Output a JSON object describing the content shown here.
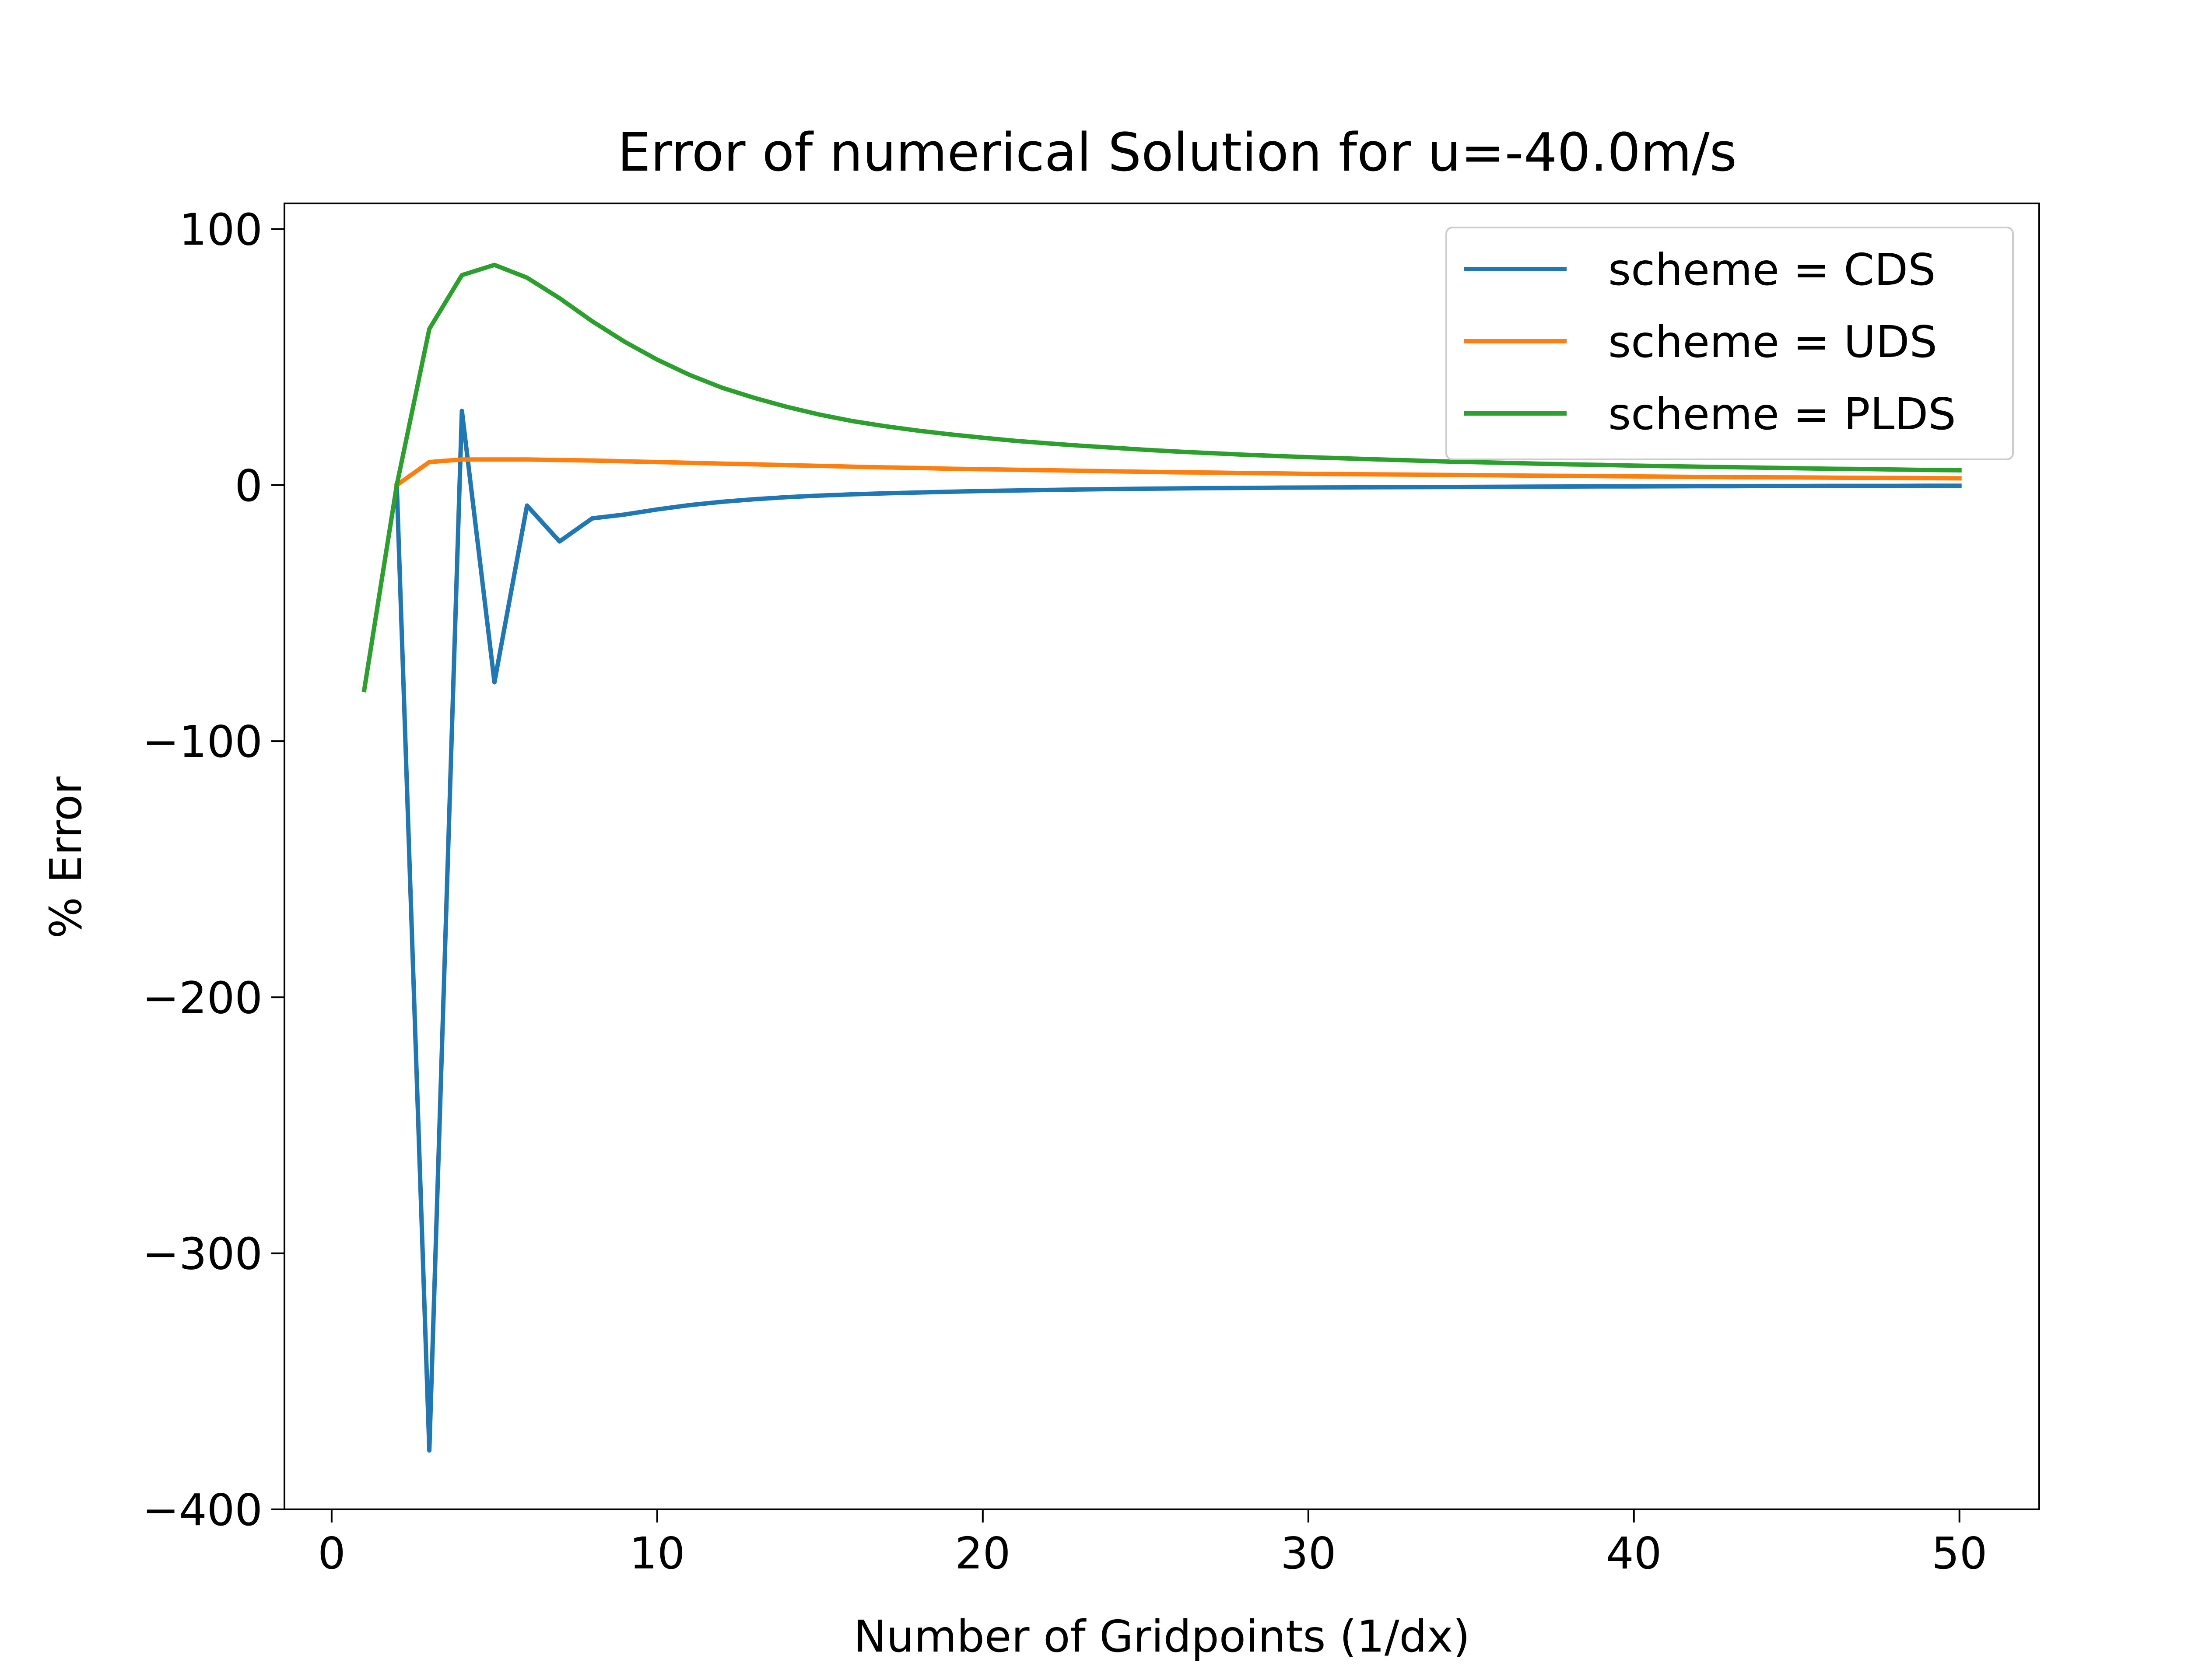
{
  "chart_data": {
    "type": "line",
    "title": "Error of numerical Solution for u=-40.0m/s",
    "xlabel": "Number of Gridpoints (1/dx)",
    "ylabel": "% Error",
    "xlim": [
      -1.45,
      52.45
    ],
    "ylim": [
      -400,
      110
    ],
    "xticks": [
      0,
      10,
      20,
      30,
      40,
      50
    ],
    "xtick_labels": [
      "0",
      "10",
      "20",
      "30",
      "40",
      "50"
    ],
    "yticks": [
      100,
      0,
      -100,
      -200,
      -300,
      -400
    ],
    "ytick_labels": [
      "100",
      "0",
      "−100",
      "−200",
      "−300",
      "−400"
    ],
    "grid": false,
    "legend_position": "top-right",
    "series": [
      {
        "name": "scheme = CDS",
        "color": "#1f77b4",
        "x": [
          2,
          3,
          4,
          5,
          6,
          7,
          8,
          9,
          10,
          11,
          12,
          13,
          14,
          15,
          16,
          17,
          18,
          19,
          20,
          21,
          22,
          23,
          24,
          25,
          26,
          27,
          28,
          29,
          30,
          31,
          32,
          33,
          34,
          35,
          36,
          37,
          38,
          39,
          40,
          41,
          42,
          43,
          44,
          45,
          46,
          47,
          48,
          49,
          50
        ],
        "y": [
          0,
          -377,
          29,
          -77,
          -8,
          -22,
          -13,
          -11.5,
          -9.5,
          -7.8,
          -6.5,
          -5.5,
          -4.7,
          -4.1,
          -3.6,
          -3.2,
          -2.9,
          -2.6,
          -2.3,
          -2.1,
          -1.9,
          -1.7,
          -1.55,
          -1.4,
          -1.3,
          -1.2,
          -1.1,
          -1.0,
          -0.95,
          -0.9,
          -0.85,
          -0.8,
          -0.75,
          -0.7,
          -0.65,
          -0.6,
          -0.55,
          -0.5,
          -0.5,
          -0.45,
          -0.4,
          -0.4,
          -0.35,
          -0.35,
          -0.3,
          -0.3,
          -0.3,
          -0.25,
          -0.25
        ]
      },
      {
        "name": "scheme = UDS",
        "color": "#ff7f0e",
        "x": [
          2,
          3,
          4,
          5,
          6,
          7,
          8,
          9,
          10,
          11,
          12,
          13,
          14,
          15,
          16,
          17,
          18,
          19,
          20,
          21,
          22,
          23,
          24,
          25,
          26,
          27,
          28,
          29,
          30,
          31,
          32,
          33,
          34,
          35,
          36,
          37,
          38,
          39,
          40,
          41,
          42,
          43,
          44,
          45,
          46,
          47,
          48,
          49,
          50
        ],
        "y": [
          0,
          9,
          10,
          10,
          10,
          9.8,
          9.6,
          9.3,
          9.0,
          8.7,
          8.4,
          8.1,
          7.8,
          7.5,
          7.2,
          6.9,
          6.7,
          6.4,
          6.2,
          6.0,
          5.8,
          5.6,
          5.4,
          5.2,
          5.0,
          4.9,
          4.7,
          4.6,
          4.4,
          4.3,
          4.2,
          4.1,
          4.0,
          3.9,
          3.8,
          3.7,
          3.6,
          3.5,
          3.4,
          3.3,
          3.2,
          3.1,
          3.05,
          3.0,
          2.9,
          2.85,
          2.8,
          2.7,
          2.65
        ]
      },
      {
        "name": "scheme = PLDS",
        "color": "#2ca02c",
        "x": [
          1,
          2,
          3,
          4,
          5,
          6,
          7,
          8,
          9,
          10,
          11,
          12,
          13,
          14,
          15,
          16,
          17,
          18,
          19,
          20,
          21,
          22,
          23,
          24,
          25,
          26,
          27,
          28,
          29,
          30,
          31,
          32,
          33,
          34,
          35,
          36,
          37,
          38,
          39,
          40,
          41,
          42,
          43,
          44,
          45,
          46,
          47,
          48,
          49,
          50
        ],
        "y": [
          -80,
          0,
          61,
          82,
          86,
          81,
          73,
          64,
          56,
          49,
          43,
          38,
          34,
          30.5,
          27.5,
          25,
          23,
          21.3,
          19.8,
          18.5,
          17.3,
          16.3,
          15.4,
          14.6,
          13.8,
          13.1,
          12.5,
          11.9,
          11.4,
          10.9,
          10.5,
          10.1,
          9.7,
          9.3,
          9.0,
          8.7,
          8.4,
          8.1,
          7.9,
          7.6,
          7.4,
          7.2,
          7.0,
          6.8,
          6.6,
          6.4,
          6.3,
          6.1,
          5.9,
          5.8
        ]
      }
    ]
  }
}
